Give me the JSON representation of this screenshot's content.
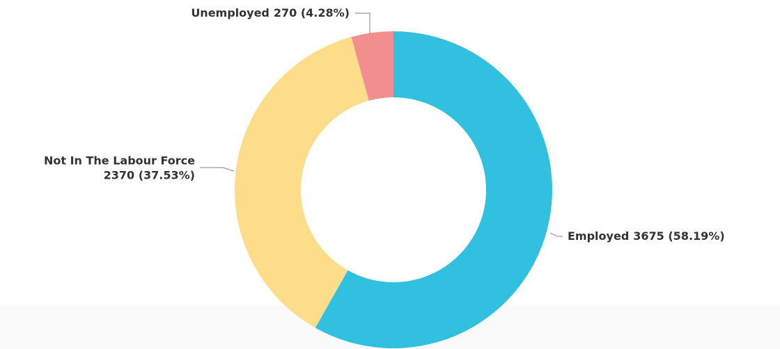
{
  "chart_data": {
    "type": "donut",
    "categories": [
      "Employed",
      "Not In The Labour Force",
      "Unemployed"
    ],
    "values": [
      3675,
      2370,
      270
    ],
    "value_labels": [
      "3675 (58.19%)",
      "2370 (37.53%)",
      "270 (4.28%)"
    ],
    "colors": [
      "#32c0e0",
      "#fedd8a",
      "#f28e8e"
    ]
  }
}
